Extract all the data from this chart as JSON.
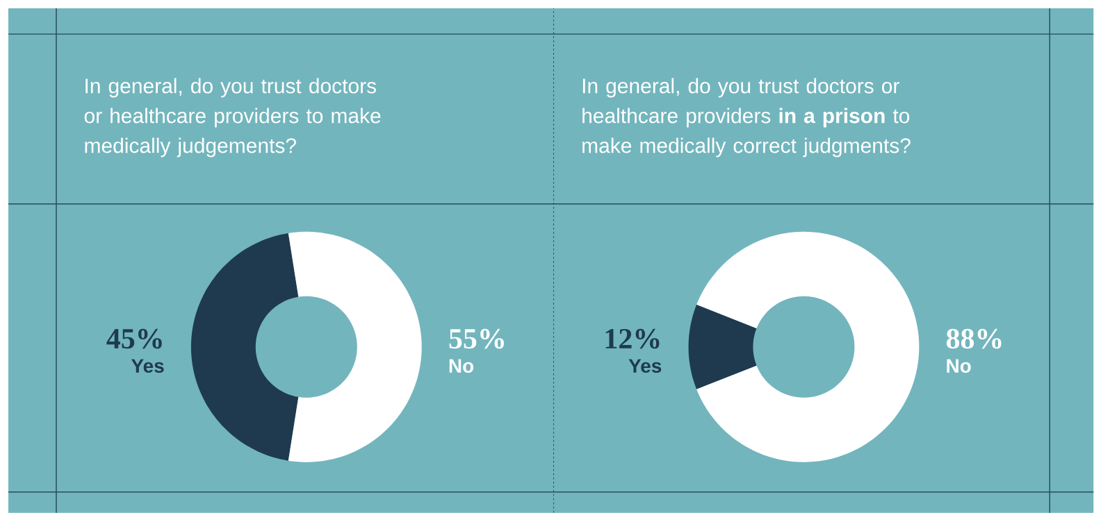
{
  "chart_data": [
    {
      "type": "donut",
      "title": "In general, do you trust doctors or healthcare providers to make medically judgements?",
      "categories": [
        "Yes",
        "No"
      ],
      "values": [
        45,
        55
      ],
      "colors": [
        "#1f3a4f",
        "#ffffff"
      ],
      "value_labels": [
        "45%",
        "55%"
      ]
    },
    {
      "type": "donut",
      "title": "In general, do you trust doctors or healthcare providers **in a prison** to make medically correct judgments?",
      "categories": [
        "Yes",
        "No"
      ],
      "values": [
        12,
        88
      ],
      "colors": [
        "#1f3a4f",
        "#ffffff"
      ],
      "value_labels": [
        "12%",
        "88%"
      ]
    }
  ]
}
